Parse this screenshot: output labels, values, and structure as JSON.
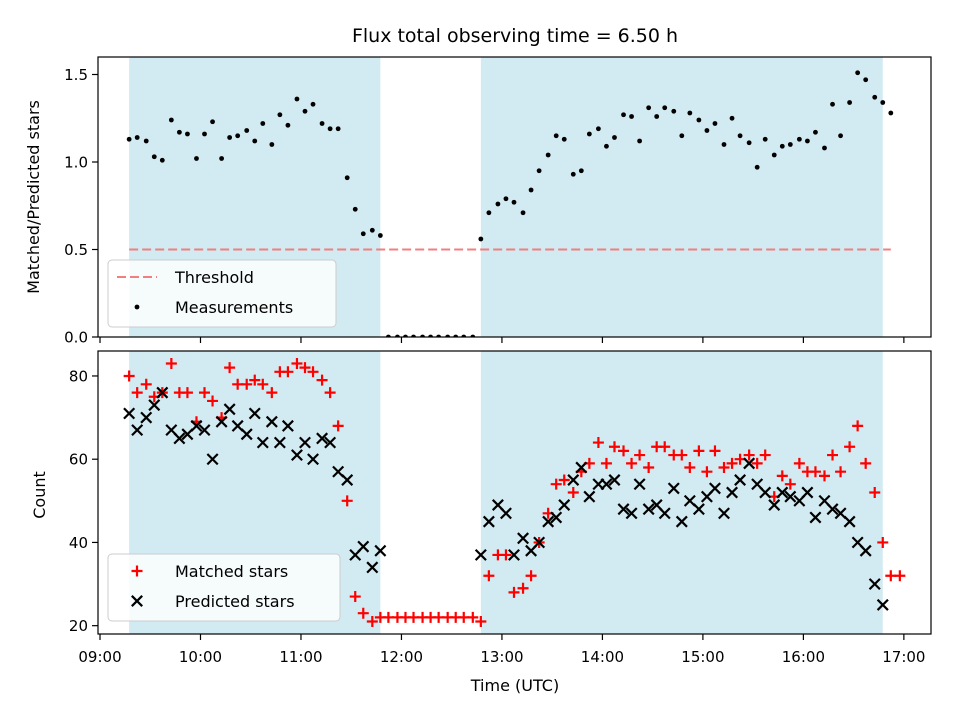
{
  "chart_data": {
    "title": "Flux total observing time = 6.50 h",
    "xlabel": "Time (UTC)",
    "x_ticks": [
      "09:00",
      "10:00",
      "11:00",
      "12:00",
      "13:00",
      "14:00",
      "15:00",
      "16:00",
      "17:00"
    ],
    "xlim_hours": [
      8.98,
      17.27
    ],
    "shaded_intervals": [
      [
        9.29,
        11.79
      ],
      [
        12.79,
        16.79
      ]
    ],
    "colors": {
      "shade": "#add8e6",
      "threshold": "#f08080",
      "matched": "#ff0000",
      "predicted": "#000000",
      "measurements": "#000000"
    },
    "panels": [
      {
        "type": "scatter",
        "ylabel": "Matched/Predicted stars",
        "ylim": [
          0,
          1.6
        ],
        "y_ticks": [
          "0.0",
          "0.5",
          "1.0",
          "1.5"
        ],
        "legend_position": "lower left",
        "threshold": {
          "name": "Threshold",
          "value": 0.5,
          "x_range": [
            9.29,
            16.87
          ]
        },
        "series": [
          {
            "name": "Measurements",
            "x": [
              9.29,
              9.37,
              9.46,
              9.54,
              9.62,
              9.71,
              9.79,
              9.87,
              9.96,
              10.04,
              10.12,
              10.21,
              10.29,
              10.37,
              10.46,
              10.54,
              10.62,
              10.71,
              10.79,
              10.87,
              10.96,
              11.04,
              11.12,
              11.21,
              11.29,
              11.37,
              11.46,
              11.54,
              11.62,
              11.71,
              11.79,
              11.87,
              11.96,
              12.04,
              12.12,
              12.21,
              12.29,
              12.37,
              12.46,
              12.54,
              12.62,
              12.71,
              12.79,
              12.87,
              12.96,
              13.04,
              13.12,
              13.21,
              13.29,
              13.37,
              13.46,
              13.54,
              13.62,
              13.71,
              13.79,
              13.87,
              13.96,
              14.04,
              14.12,
              14.21,
              14.29,
              14.37,
              14.46,
              14.54,
              14.62,
              14.71,
              14.79,
              14.87,
              14.96,
              15.04,
              15.12,
              15.21,
              15.29,
              15.37,
              15.46,
              15.54,
              15.62,
              15.71,
              15.79,
              15.87,
              15.96,
              16.04,
              16.12,
              16.21,
              16.29,
              16.37,
              16.46,
              16.54,
              16.62,
              16.71,
              16.79,
              16.87
            ],
            "y": [
              1.13,
              1.14,
              1.12,
              1.03,
              1.01,
              1.24,
              1.17,
              1.16,
              1.02,
              1.16,
              1.23,
              1.02,
              1.14,
              1.15,
              1.18,
              1.12,
              1.22,
              1.1,
              1.27,
              1.21,
              1.36,
              1.29,
              1.33,
              1.22,
              1.19,
              1.19,
              0.91,
              0.73,
              0.59,
              0.61,
              0.58,
              0,
              0,
              0,
              0,
              0,
              0,
              0,
              0,
              0,
              0,
              0,
              0.56,
              0.71,
              0.76,
              0.79,
              0.77,
              0.71,
              0.84,
              0.95,
              1.04,
              1.15,
              1.13,
              0.93,
              0.95,
              1.16,
              1.19,
              1.09,
              1.14,
              1.27,
              1.26,
              1.12,
              1.31,
              1.26,
              1.31,
              1.29,
              1.15,
              1.28,
              1.24,
              1.18,
              1.22,
              1.1,
              1.25,
              1.15,
              1.11,
              0.97,
              1.13,
              1.04,
              1.09,
              1.1,
              1.13,
              1.12,
              1.17,
              1.08,
              1.33,
              1.15,
              1.34,
              1.51,
              1.47,
              1.37,
              1.34,
              1.28
            ]
          }
        ]
      },
      {
        "type": "scatter",
        "ylabel": "Count",
        "ylim": [
          18,
          86
        ],
        "y_ticks": [
          "20",
          "40",
          "60",
          "80"
        ],
        "legend_position": "lower left",
        "series": [
          {
            "name": "Matched stars",
            "marker": "+",
            "x": [
              9.29,
              9.37,
              9.46,
              9.54,
              9.62,
              9.71,
              9.79,
              9.87,
              9.96,
              10.04,
              10.12,
              10.21,
              10.29,
              10.37,
              10.46,
              10.54,
              10.62,
              10.71,
              10.79,
              10.87,
              10.96,
              11.04,
              11.12,
              11.21,
              11.29,
              11.37,
              11.46,
              11.54,
              11.62,
              11.71,
              11.79,
              11.87,
              11.96,
              12.04,
              12.12,
              12.21,
              12.29,
              12.37,
              12.46,
              12.54,
              12.62,
              12.71,
              12.79,
              12.87,
              12.96,
              13.04,
              13.12,
              13.21,
              13.29,
              13.37,
              13.46,
              13.54,
              13.62,
              13.71,
              13.79,
              13.87,
              13.96,
              14.04,
              14.12,
              14.21,
              14.29,
              14.37,
              14.46,
              14.54,
              14.62,
              14.71,
              14.79,
              14.87,
              14.96,
              15.04,
              15.12,
              15.21,
              15.29,
              15.37,
              15.46,
              15.54,
              15.62,
              15.71,
              15.79,
              15.87,
              15.96,
              16.04,
              16.12,
              16.21,
              16.29,
              16.37,
              16.46,
              16.54,
              16.62,
              16.71,
              16.79,
              16.87,
              16.96
            ],
            "y": [
              80,
              76,
              78,
              75,
              76,
              83,
              76,
              76,
              69,
              76,
              74,
              70,
              82,
              78,
              78,
              79,
              78,
              76,
              81,
              81,
              83,
              82,
              81,
              79,
              76,
              68,
              50,
              27,
              23,
              21,
              22,
              22,
              22,
              22,
              22,
              22,
              22,
              22,
              22,
              22,
              22,
              22,
              21,
              32,
              37,
              37,
              28,
              29,
              32,
              40,
              47,
              54,
              55,
              52,
              57,
              59,
              64,
              59,
              63,
              62,
              59,
              61,
              58,
              63,
              63,
              61,
              61,
              58,
              62,
              57,
              62,
              58,
              59,
              60,
              61,
              59,
              61,
              51,
              56,
              54,
              59,
              57,
              57,
              56,
              61,
              57,
              63,
              68,
              59,
              52,
              40,
              32,
              32
            ]
          },
          {
            "name": "Predicted stars",
            "marker": "x",
            "x": [
              9.29,
              9.37,
              9.46,
              9.54,
              9.62,
              9.71,
              9.79,
              9.87,
              9.96,
              10.04,
              10.12,
              10.21,
              10.29,
              10.37,
              10.46,
              10.54,
              10.62,
              10.71,
              10.79,
              10.87,
              10.96,
              11.04,
              11.12,
              11.21,
              11.29,
              11.37,
              11.46,
              11.54,
              11.62,
              11.71,
              11.79,
              12.79,
              12.87,
              12.96,
              13.04,
              13.12,
              13.21,
              13.29,
              13.37,
              13.46,
              13.54,
              13.62,
              13.71,
              13.79,
              13.87,
              13.96,
              14.04,
              14.12,
              14.21,
              14.29,
              14.37,
              14.46,
              14.54,
              14.62,
              14.71,
              14.79,
              14.87,
              14.96,
              15.04,
              15.12,
              15.21,
              15.29,
              15.37,
              15.46,
              15.54,
              15.62,
              15.71,
              15.79,
              15.87,
              15.96,
              16.04,
              16.12,
              16.21,
              16.29,
              16.37,
              16.46,
              16.54,
              16.62,
              16.71,
              16.79
            ],
            "y": [
              71,
              67,
              70,
              73,
              76,
              67,
              65,
              66,
              68,
              67,
              60,
              69,
              72,
              68,
              66,
              71,
              64,
              69,
              64,
              68,
              61,
              64,
              60,
              65,
              64,
              57,
              55,
              37,
              39,
              34,
              38,
              37,
              45,
              49,
              47,
              37,
              41,
              38,
              40,
              45,
              46,
              49,
              55,
              58,
              51,
              54,
              54,
              55,
              48,
              47,
              54,
              48,
              49,
              47,
              53,
              45,
              50,
              48,
              51,
              53,
              47,
              52,
              55,
              59,
              54,
              52,
              49,
              52,
              51,
              50,
              52,
              46,
              50,
              48,
              47,
              45,
              40,
              38,
              30,
              25
            ]
          }
        ]
      }
    ]
  }
}
